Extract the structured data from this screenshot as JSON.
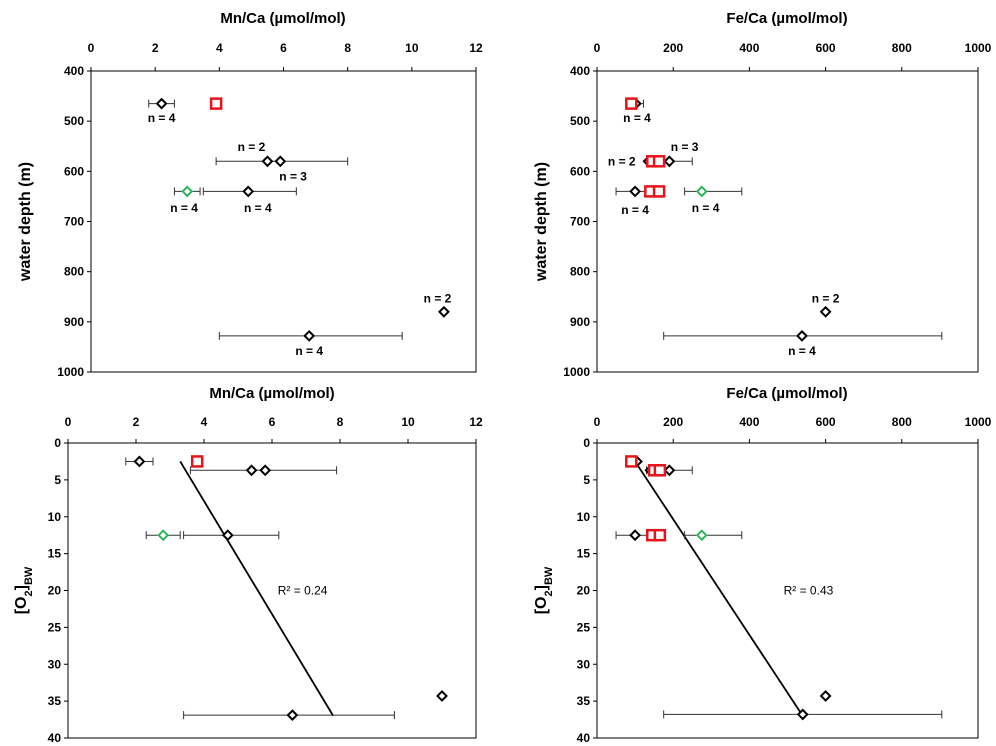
{
  "colors": {
    "black": "#000000",
    "red": "#e8141b",
    "green": "#2db55d",
    "errorbar": "#333333"
  },
  "chart_data": [
    {
      "id": "mnca_depth",
      "type": "scatter",
      "title": "Mn/Ca (µmol/mol)",
      "ylabel": "water depth (m)",
      "xlim": [
        0,
        12
      ],
      "ylim": [
        400,
        1000
      ],
      "xticks": [
        "0",
        "2",
        "4",
        "6",
        "8",
        "10",
        "12"
      ],
      "yticks": [
        "400",
        "500",
        "600",
        "700",
        "800",
        "900",
        "1000"
      ],
      "series": [
        {
          "marker": "diamond",
          "color": "black",
          "points": [
            {
              "x": 2.2,
              "y": 465,
              "xerr": [
                1.8,
                2.6
              ]
            },
            {
              "x": 5.5,
              "y": 580
            },
            {
              "x": 5.9,
              "y": 580,
              "xerr": [
                3.9,
                8.0
              ]
            },
            {
              "x": 4.9,
              "y": 640,
              "xerr": [
                3.5,
                6.4
              ]
            },
            {
              "x": 11.0,
              "y": 880
            },
            {
              "x": 6.8,
              "y": 928,
              "xerr": [
                4.0,
                9.7
              ]
            }
          ]
        },
        {
          "marker": "square",
          "color": "red",
          "points": [
            {
              "x": 3.9,
              "y": 465
            }
          ]
        },
        {
          "marker": "diamond",
          "color": "green",
          "points": [
            {
              "x": 3.0,
              "y": 640,
              "xerr": [
                2.6,
                3.4
              ]
            }
          ]
        }
      ],
      "annotations": [
        {
          "text": "n = 4",
          "x": 2.2,
          "y": 494
        },
        {
          "text": "n = 2",
          "x": 5.0,
          "y": 551
        },
        {
          "text": "n = 3",
          "x": 6.3,
          "y": 610
        },
        {
          "text": "n = 4",
          "x": 2.9,
          "y": 673
        },
        {
          "text": "n = 4",
          "x": 5.2,
          "y": 673
        },
        {
          "text": "n = 2",
          "x": 10.8,
          "y": 853
        },
        {
          "text": "n = 4",
          "x": 6.8,
          "y": 958
        }
      ]
    },
    {
      "id": "feca_depth",
      "type": "scatter",
      "title": "Fe/Ca (µmol/mol)",
      "ylabel": "water depth (m)",
      "xlim": [
        0,
        1000
      ],
      "ylim": [
        400,
        1000
      ],
      "xticks": [
        "0",
        "200",
        "400",
        "600",
        "800",
        "1000"
      ],
      "yticks": [
        "400",
        "500",
        "600",
        "700",
        "800",
        "900",
        "1000"
      ],
      "series": [
        {
          "marker": "diamond",
          "color": "black",
          "points": [
            {
              "x": 102,
              "y": 465,
              "xerr": [
                82,
                122
              ]
            },
            {
              "x": 135,
              "y": 580
            },
            {
              "x": 190,
              "y": 580,
              "xerr": [
                130,
                250
              ]
            },
            {
              "x": 100,
              "y": 640,
              "xerr": [
                50,
                150
              ]
            },
            {
              "x": 600,
              "y": 880
            },
            {
              "x": 538,
              "y": 928,
              "xerr": [
                175,
                905
              ]
            }
          ]
        },
        {
          "marker": "square",
          "color": "red",
          "points": [
            {
              "x": 90,
              "y": 465
            },
            {
              "x": 145,
              "y": 580
            },
            {
              "x": 163,
              "y": 580
            },
            {
              "x": 140,
              "y": 640
            },
            {
              "x": 163,
              "y": 640
            }
          ]
        },
        {
          "marker": "diamond",
          "color": "green",
          "points": [
            {
              "x": 275,
              "y": 640,
              "xerr": [
                230,
                380
              ]
            }
          ]
        }
      ],
      "annotations": [
        {
          "text": "n = 4",
          "x": 105,
          "y": 494
        },
        {
          "text": "n = 3",
          "x": 230,
          "y": 551
        },
        {
          "text": "n = 2",
          "x": 65,
          "y": 580
        },
        {
          "text": "n = 4",
          "x": 100,
          "y": 677
        },
        {
          "text": "n = 4",
          "x": 285,
          "y": 673
        },
        {
          "text": "n = 2",
          "x": 600,
          "y": 853
        },
        {
          "text": "n = 4",
          "x": 538,
          "y": 958
        }
      ]
    },
    {
      "id": "mnca_o2",
      "type": "scatter",
      "title": "Mn/Ca (µmol/mol)",
      "ylabel_main": "[O",
      "ylabel_sub1": "2",
      "ylabel_mid": "]",
      "ylabel_sub2": "BW",
      "xlim": [
        0,
        12
      ],
      "ylim": [
        0,
        40
      ],
      "xticks": [
        "0",
        "2",
        "4",
        "6",
        "8",
        "10",
        "12"
      ],
      "yticks": [
        "0",
        "5",
        "10",
        "15",
        "20",
        "25",
        "30",
        "35",
        "40"
      ],
      "series": [
        {
          "marker": "diamond",
          "color": "black",
          "points": [
            {
              "x": 2.1,
              "y": 2.5,
              "xerr": [
                1.7,
                2.5
              ]
            },
            {
              "x": 5.4,
              "y": 3.7
            },
            {
              "x": 5.8,
              "y": 3.7,
              "xerr": [
                3.6,
                7.9
              ]
            },
            {
              "x": 4.7,
              "y": 12.5,
              "xerr": [
                3.4,
                6.2
              ]
            },
            {
              "x": 11.0,
              "y": 34.3
            },
            {
              "x": 6.6,
              "y": 36.9,
              "xerr": [
                3.4,
                9.6
              ]
            }
          ]
        },
        {
          "marker": "square",
          "color": "red",
          "points": [
            {
              "x": 3.8,
              "y": 2.5
            }
          ]
        },
        {
          "marker": "diamond",
          "color": "green",
          "points": [
            {
              "x": 2.8,
              "y": 12.5,
              "xerr": [
                2.3,
                3.3
              ]
            }
          ]
        }
      ],
      "trendline": {
        "x": [
          3.3,
          7.8
        ],
        "y": [
          2.5,
          37.0
        ]
      },
      "annotations": [
        {
          "text": "R² = 0.24",
          "x": 6.9,
          "y": 20.0
        }
      ]
    },
    {
      "id": "feca_o2",
      "type": "scatter",
      "title": "Fe/Ca (µmol/mol)",
      "ylabel_main": "[O",
      "ylabel_sub1": "2",
      "ylabel_mid": "]",
      "ylabel_sub2": "BW",
      "xlim": [
        0,
        1000
      ],
      "ylim": [
        0,
        40
      ],
      "xticks": [
        "0",
        "200",
        "400",
        "600",
        "800",
        "1000"
      ],
      "yticks": [
        "0",
        "5",
        "10",
        "15",
        "20",
        "25",
        "30",
        "35",
        "40"
      ],
      "series": [
        {
          "marker": "diamond",
          "color": "black",
          "points": [
            {
              "x": 105,
              "y": 2.5
            },
            {
              "x": 140,
              "y": 3.7
            },
            {
              "x": 190,
              "y": 3.7,
              "xerr": [
                130,
                250
              ]
            },
            {
              "x": 100,
              "y": 12.5,
              "xerr": [
                50,
                150
              ]
            },
            {
              "x": 600,
              "y": 34.3
            },
            {
              "x": 540,
              "y": 36.8,
              "xerr": [
                175,
                905
              ]
            }
          ]
        },
        {
          "marker": "square",
          "color": "red",
          "points": [
            {
              "x": 90,
              "y": 2.5
            },
            {
              "x": 150,
              "y": 3.7
            },
            {
              "x": 165,
              "y": 3.7
            },
            {
              "x": 145,
              "y": 12.5
            },
            {
              "x": 165,
              "y": 12.5
            }
          ]
        },
        {
          "marker": "diamond",
          "color": "green",
          "points": [
            {
              "x": 275,
              "y": 12.5,
              "xerr": [
                230,
                380
              ]
            }
          ]
        }
      ],
      "trendline": {
        "x": [
          100,
          540
        ],
        "y": [
          2.5,
          37.0
        ]
      },
      "annotations": [
        {
          "text": "R² = 0.43",
          "x": 555,
          "y": 20.0
        }
      ]
    }
  ]
}
